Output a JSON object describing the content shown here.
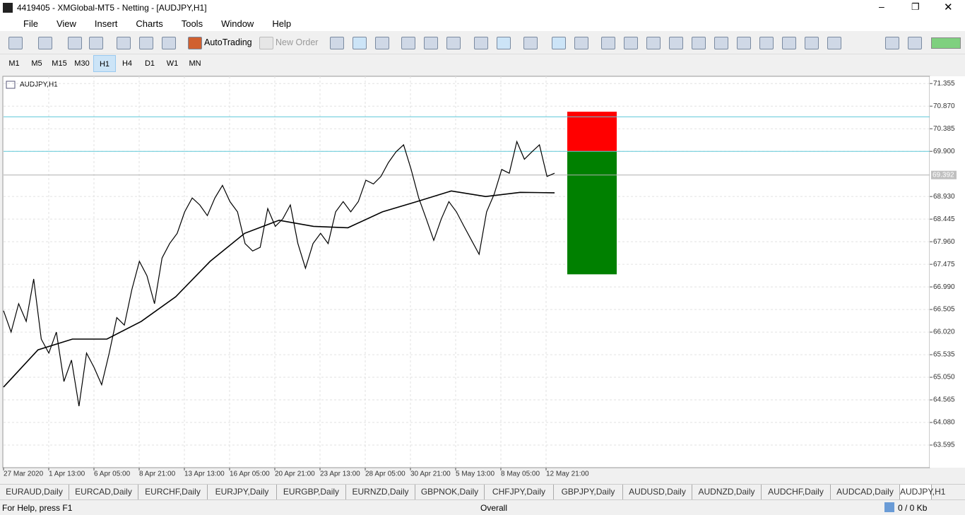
{
  "window": {
    "title": "4419405 - XMGlobal-MT5 - Netting - [AUDJPY,H1]"
  },
  "menu": [
    "File",
    "View",
    "Insert",
    "Charts",
    "Tools",
    "Window",
    "Help"
  ],
  "toolbar": {
    "auto_trading": "AutoTrading",
    "new_order": "New Order"
  },
  "timeframes": [
    "M1",
    "M5",
    "M15",
    "M30",
    "H1",
    "H4",
    "D1",
    "W1",
    "MN"
  ],
  "chart_data": {
    "type": "line",
    "title": "AUDJPY,H1",
    "categories": [
      "27 Mar 2020",
      "1 Apr 13:00",
      "6 Apr 05:00",
      "8 Apr 21:00",
      "13 Apr 13:00",
      "16 Apr 05:00",
      "20 Apr 21:00",
      "23 Apr 13:00",
      "28 Apr 05:00",
      "30 Apr 21:00",
      "5 May 13:00",
      "8 May 05:00",
      "12 May 21:00"
    ],
    "price": {
      "color": "#000000",
      "values": [
        66.48,
        66.02,
        66.63,
        66.25,
        67.16,
        65.87,
        65.57,
        66.02,
        64.96,
        65.42,
        64.43,
        65.57,
        65.26,
        64.89,
        65.57,
        66.33,
        66.17,
        66.93,
        67.54,
        67.23,
        66.63,
        67.61,
        67.92,
        68.14,
        68.6,
        68.9,
        68.75,
        68.52,
        68.9,
        69.17,
        68.82,
        68.6,
        67.92,
        67.76,
        67.84,
        68.67,
        68.29,
        68.45,
        68.75,
        67.92,
        67.39,
        67.92,
        68.14,
        67.92,
        68.6,
        68.82,
        68.6,
        68.82,
        69.28,
        69.2,
        69.36,
        69.66,
        69.89,
        70.04,
        69.51,
        68.9,
        68.45,
        67.99,
        68.45,
        68.82,
        68.6,
        68.29,
        67.99,
        67.69,
        68.6,
        68.98,
        69.51,
        69.43,
        70.11,
        69.73,
        69.89,
        70.04,
        69.36,
        69.43
      ]
    },
    "moving_average": {
      "color": "#000000",
      "values": [
        64.84,
        65.64,
        65.87,
        65.87,
        66.25,
        66.78,
        67.54,
        68.14,
        68.42,
        68.29,
        68.26,
        68.6,
        68.82,
        69.05,
        68.93,
        69.02,
        69.01
      ]
    },
    "levels": [
      {
        "value": 70.64,
        "color": "#5fc8d8"
      },
      {
        "value": 69.9,
        "color": "#5fc8d8"
      }
    ],
    "stop_zone": {
      "top": 70.75,
      "bottom": 69.9,
      "color": "#ff0000"
    },
    "profit_zone": {
      "top": 69.9,
      "bottom": 67.26,
      "color": "#008000"
    },
    "current_price": 69.392,
    "ylim": [
      63.11,
      71.45
    ],
    "yticks": [
      {
        "value": 71.355,
        "label": "71.355"
      },
      {
        "value": 70.87,
        "label": "70.870"
      },
      {
        "value": 70.385,
        "label": "70.385"
      },
      {
        "value": 69.9,
        "label": "69.900"
      },
      {
        "value": 68.93,
        "label": "68.930"
      },
      {
        "value": 68.445,
        "label": "68.445"
      },
      {
        "value": 67.96,
        "label": "67.960"
      },
      {
        "value": 67.475,
        "label": "67.475"
      },
      {
        "value": 66.99,
        "label": "66.990"
      },
      {
        "value": 66.505,
        "label": "66.505"
      },
      {
        "value": 66.02,
        "label": "66.020"
      },
      {
        "value": 65.535,
        "label": "65.535"
      },
      {
        "value": 65.05,
        "label": "65.050"
      },
      {
        "value": 64.565,
        "label": "64.565"
      },
      {
        "value": 64.08,
        "label": "64.080"
      },
      {
        "value": 63.595,
        "label": "63.595"
      }
    ],
    "grid": true
  },
  "tabs": [
    "EURAUD,Daily",
    "EURCAD,Daily",
    "EURCHF,Daily",
    "EURJPY,Daily",
    "EURGBP,Daily",
    "EURNZD,Daily",
    "GBPNOK,Daily",
    "CHFJPY,Daily",
    "GBPJPY,Daily",
    "AUDUSD,Daily",
    "AUDNZD,Daily",
    "AUDCHF,Daily",
    "AUDCAD,Daily",
    "AUDJPY,H1"
  ],
  "status": {
    "help": "For Help, press F1",
    "profile": "Overall",
    "traffic": "0 / 0 Kb"
  }
}
